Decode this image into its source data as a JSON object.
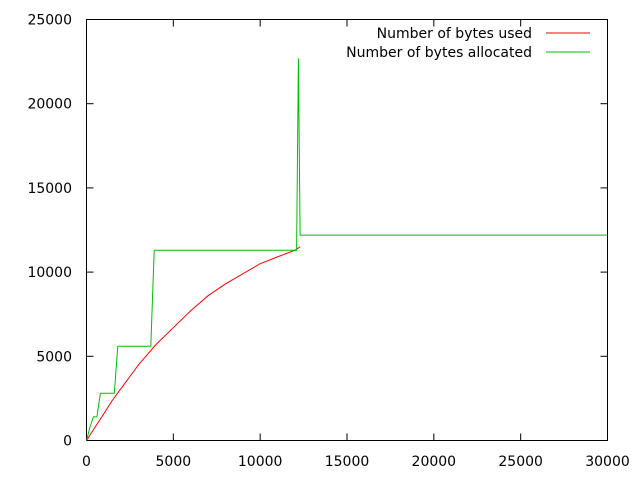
{
  "chart_data": {
    "type": "line",
    "title": "",
    "xlabel": "",
    "ylabel": "",
    "xlim": [
      0,
      30000
    ],
    "ylim": [
      0,
      25000
    ],
    "x_ticks": [
      0,
      5000,
      10000,
      15000,
      20000,
      25000,
      30000
    ],
    "y_ticks": [
      0,
      5000,
      10000,
      15000,
      20000,
      25000
    ],
    "x_tick_labels": [
      "0",
      "5000",
      "10000",
      "15000",
      "20000",
      "25000",
      "30000"
    ],
    "y_tick_labels": [
      "0",
      "5000",
      "10000",
      "15000",
      "20000",
      "25000"
    ],
    "grid": false,
    "legend": "top-right",
    "series": [
      {
        "name": "Number of bytes used",
        "color": "#ff0000",
        "x": [
          0,
          500,
          1000,
          1500,
          2000,
          2500,
          3000,
          3500,
          4000,
          5000,
          6000,
          7000,
          8000,
          9000,
          10000,
          11000,
          12000,
          12300
        ],
        "y": [
          0,
          800,
          1600,
          2400,
          3100,
          3800,
          4500,
          5100,
          5700,
          6700,
          7700,
          8600,
          9300,
          9900,
          10500,
          10900,
          11300,
          11500
        ]
      },
      {
        "name": "Number of bytes allocated",
        "color": "#00c000",
        "x": [
          0,
          200,
          400,
          600,
          800,
          1600,
          1800,
          3700,
          3900,
          12000,
          12100,
          12200,
          12300,
          12400,
          12500,
          30000
        ],
        "y": [
          0,
          800,
          1400,
          1400,
          2800,
          2800,
          5600,
          5600,
          11300,
          11300,
          11300,
          22700,
          12200,
          12200,
          12200,
          12200
        ]
      }
    ]
  }
}
